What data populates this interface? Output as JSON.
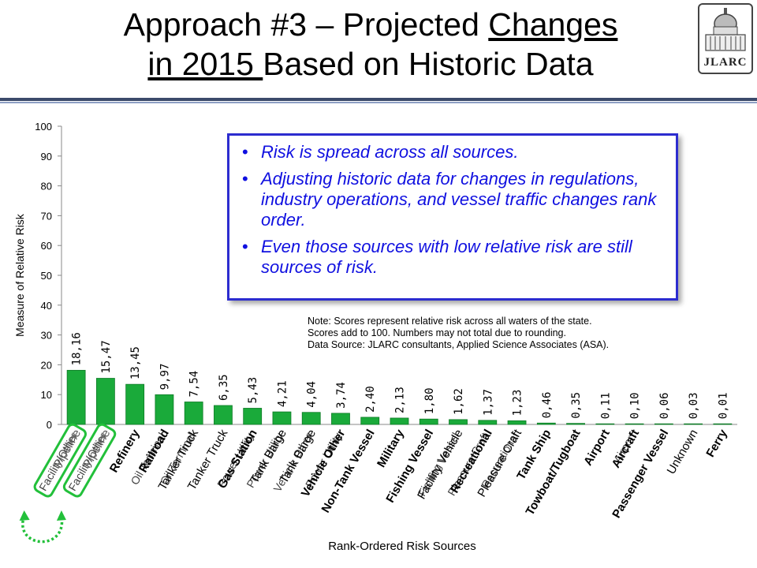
{
  "title": {
    "part1": "Approach #3 – Projected ",
    "part2": "Changes",
    "part3": "in 2015 ",
    "part4": "Based on Historic Data"
  },
  "logo": {
    "text": "JLARC"
  },
  "callout": {
    "bullets": [
      "Risk is spread across all sources.",
      "Adjusting historic data for changes in regulations, industry operations, and vessel traffic changes rank order.",
      "Even those sources with low relative risk are still sources of risk."
    ]
  },
  "note": {
    "lines": [
      "Note: Scores represent relative risk across all waters of the state.",
      "Scores add to 100.  Numbers may not total due to rounding.",
      "Data Source: JLARC consultants, Applied Science Associates (ASA)."
    ]
  },
  "chart_data": {
    "type": "bar",
    "ylabel": "Measure of Relative Risk",
    "xlabel": "Rank-Ordered Risk Sources",
    "ylim": [
      0,
      100
    ],
    "yticks": [
      0,
      10,
      20,
      30,
      40,
      50,
      60,
      70,
      80,
      90,
      100
    ],
    "grid": false,
    "bar_color": "#1aaa3a",
    "categories": [
      {
        "label": "Pipeline",
        "extra": "Facility/Other",
        "boxed": true,
        "bold": false
      },
      {
        "label": "Pipeline",
        "extra": "Facility/Other",
        "boxed": true,
        "bold": false
      },
      {
        "label": "Refinery",
        "extra": "",
        "boxed": false,
        "bold": true
      },
      {
        "label": "Railroad",
        "extra": "Oil Terminal",
        "boxed": false,
        "bold": true
      },
      {
        "label": "Tanker Truck",
        "extra": "Oil Terminal",
        "boxed": false,
        "bold": false
      },
      {
        "label": "Tanker Truck",
        "extra": "",
        "boxed": false,
        "bold": false
      },
      {
        "label": "Gas Station",
        "extra": "Power Utility",
        "boxed": false,
        "bold": true
      },
      {
        "label": "Tank Barge",
        "extra": "Power Utility",
        "boxed": false,
        "bold": false
      },
      {
        "label": "Tank Barge",
        "extra": "Vehicle Other",
        "boxed": false,
        "bold": false
      },
      {
        "label": "Vehicle Other",
        "extra": "Power Utility",
        "boxed": false,
        "bold": true
      },
      {
        "label": "Non-Tank Vessel",
        "extra": "",
        "boxed": false,
        "bold": true
      },
      {
        "label": "Military",
        "extra": "",
        "boxed": false,
        "bold": true
      },
      {
        "label": "Fishing Vessel",
        "extra": "",
        "boxed": false,
        "bold": true
      },
      {
        "label": "Facility Vehicle",
        "extra": "Fishing Vessel",
        "boxed": false,
        "bold": false
      },
      {
        "label": "Recreational",
        "extra": "Pleasure Craft",
        "boxed": false,
        "bold": true
      },
      {
        "label": "Pleasure Craft",
        "extra": "Recreational",
        "boxed": false,
        "bold": false
      },
      {
        "label": "Tank Ship",
        "extra": "",
        "boxed": false,
        "bold": true
      },
      {
        "label": "Towboat/Tugboat",
        "extra": "",
        "boxed": false,
        "bold": true
      },
      {
        "label": "Airport",
        "extra": "",
        "boxed": false,
        "bold": true
      },
      {
        "label": "Aircraft",
        "extra": "Airport",
        "boxed": false,
        "bold": true
      },
      {
        "label": "Passenger Vessel",
        "extra": "",
        "boxed": false,
        "bold": true
      },
      {
        "label": "Unknown",
        "extra": "",
        "boxed": false,
        "bold": false
      },
      {
        "label": "Ferry",
        "extra": "",
        "boxed": false,
        "bold": true
      }
    ],
    "values": [
      18.16,
      15.47,
      13.45,
      9.97,
      7.54,
      6.35,
      5.43,
      4.21,
      4.04,
      3.74,
      2.4,
      2.13,
      1.8,
      1.62,
      1.37,
      1.23,
      0.46,
      0.35,
      0.11,
      0.1,
      0.06,
      0.03,
      0.01
    ],
    "value_labels": [
      "18,16",
      "15,47",
      "13,45",
      "9,97",
      "7,54",
      "6,35",
      "5,43",
      "4,21",
      "4,04",
      "3,74",
      "2,40",
      "2,13",
      "1,80",
      "1,62",
      "1,37",
      "1,23",
      "0,46",
      "0,35",
      "0,11",
      "0,10",
      "0,06",
      "0,03",
      "0,01"
    ]
  }
}
